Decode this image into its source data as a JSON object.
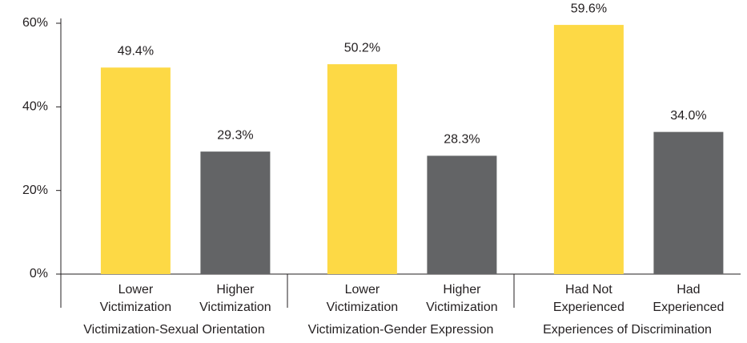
{
  "chart_data": {
    "type": "bar",
    "categories": [
      [
        "Lower",
        "Victimization"
      ],
      [
        "Higher",
        "Victimization"
      ],
      [
        "Lower",
        "Victimization"
      ],
      [
        "Higher",
        "Victimization"
      ],
      [
        "Had Not",
        "Experienced"
      ],
      [
        "Had",
        "Experienced"
      ]
    ],
    "groups": [
      "Victimization-Sexual Orientation",
      "Victimization-Gender Expression",
      "Experiences of Discrimination"
    ],
    "values": [
      49.4,
      29.3,
      50.2,
      28.3,
      59.6,
      34.0
    ],
    "value_labels": [
      "49.4%",
      "29.3%",
      "50.2%",
      "28.3%",
      "59.6%",
      "34.0%"
    ],
    "colors": [
      "#fdd945",
      "#636466",
      "#fdd945",
      "#636466",
      "#fdd945",
      "#636466"
    ],
    "ylim": [
      0,
      60
    ],
    "yticks": [
      {
        "value": 0,
        "label": "0%"
      },
      {
        "value": 20,
        "label": "20%"
      },
      {
        "value": 40,
        "label": "40%"
      },
      {
        "value": 60,
        "label": "60%"
      }
    ]
  }
}
